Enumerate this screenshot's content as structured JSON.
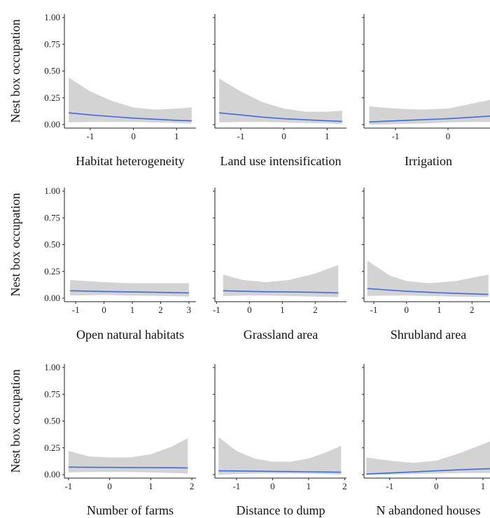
{
  "chart_data": [
    {
      "type": "line",
      "xlabel": "Habitat heterogeneity",
      "ylabel": "Nest box occupation",
      "xlim": [
        -1.6,
        1.45
      ],
      "xticks": [
        -1,
        0,
        1
      ],
      "ylim": [
        0,
        1
      ],
      "yticks": [
        "0.00",
        "0.25",
        "0.50",
        "0.75",
        "1.00"
      ],
      "x": [
        -1.5,
        -1,
        -0.5,
        0,
        0.5,
        1,
        1.35
      ],
      "y": [
        0.11,
        0.09,
        0.075,
        0.06,
        0.05,
        0.04,
        0.035
      ],
      "ci_lower": [
        0.02,
        0.025,
        0.025,
        0.025,
        0.02,
        0.015,
        0.01
      ],
      "ci_upper": [
        0.44,
        0.31,
        0.22,
        0.16,
        0.14,
        0.15,
        0.16
      ],
      "line_color": "#4169e1",
      "band_color": "#d3d3d3"
    },
    {
      "type": "line",
      "xlabel": "Land use intensification",
      "ylabel": "Nest box occupation",
      "xlim": [
        -1.6,
        1.45
      ],
      "xticks": [
        -1,
        0,
        1
      ],
      "ylim": [
        0,
        1
      ],
      "yticks": [
        "0.00",
        "0.25",
        "0.50",
        "0.75",
        "1.00"
      ],
      "x": [
        -1.5,
        -1,
        -0.5,
        0,
        0.5,
        1,
        1.35
      ],
      "y": [
        0.11,
        0.09,
        0.07,
        0.055,
        0.045,
        0.035,
        0.03
      ],
      "ci_lower": [
        0.02,
        0.025,
        0.025,
        0.02,
        0.015,
        0.01,
        0.005
      ],
      "ci_upper": [
        0.43,
        0.31,
        0.21,
        0.15,
        0.12,
        0.12,
        0.13
      ],
      "line_color": "#4169e1",
      "band_color": "#d3d3d3"
    },
    {
      "type": "line",
      "xlabel": "Irrigation",
      "ylabel": "Nest box occupation",
      "xlim": [
        -1.6,
        0.8
      ],
      "xticks": [
        -1,
        0
      ],
      "ylim": [
        0,
        1
      ],
      "yticks": [
        "0.00",
        "0.25",
        "0.50",
        "0.75",
        "1.00"
      ],
      "x": [
        -1.5,
        -1,
        -0.5,
        0,
        0.5,
        0.8
      ],
      "y": [
        0.025,
        0.035,
        0.045,
        0.055,
        0.07,
        0.08
      ],
      "ci_lower": [
        0.0,
        0.005,
        0.01,
        0.02,
        0.025,
        0.025
      ],
      "ci_upper": [
        0.17,
        0.15,
        0.14,
        0.15,
        0.2,
        0.23
      ],
      "line_color": "#4169e1",
      "band_color": "#d3d3d3"
    },
    {
      "type": "line",
      "xlabel": "Open natural habitats",
      "ylabel": "Nest box occupation",
      "xlim": [
        -1.4,
        3.25
      ],
      "xticks": [
        -1,
        0,
        1,
        2,
        3
      ],
      "ylim": [
        0,
        1
      ],
      "yticks": [
        "0.00",
        "0.25",
        "0.50",
        "0.75",
        "1.00"
      ],
      "x": [
        -1.2,
        0,
        1,
        2,
        3
      ],
      "y": [
        0.07,
        0.063,
        0.058,
        0.054,
        0.05
      ],
      "ci_lower": [
        0.025,
        0.03,
        0.025,
        0.02,
        0.015
      ],
      "ci_upper": [
        0.17,
        0.15,
        0.14,
        0.14,
        0.14
      ],
      "line_color": "#4169e1",
      "band_color": "#d3d3d3"
    },
    {
      "type": "line",
      "xlabel": "Grassland area",
      "ylabel": "Nest box occupation",
      "xlim": [
        -1.05,
        2.95
      ],
      "xticks": [
        -1,
        0,
        1,
        2
      ],
      "ylim": [
        0,
        1
      ],
      "yticks": [
        "0.00",
        "0.25",
        "0.50",
        "0.75",
        "1.00"
      ],
      "x": [
        -0.8,
        -0.2,
        0.5,
        1.2,
        2,
        2.7
      ],
      "y": [
        0.07,
        0.065,
        0.06,
        0.058,
        0.055,
        0.05
      ],
      "ci_lower": [
        0.02,
        0.025,
        0.025,
        0.02,
        0.015,
        0.01
      ],
      "ci_upper": [
        0.22,
        0.17,
        0.15,
        0.17,
        0.23,
        0.31
      ],
      "line_color": "#4169e1",
      "band_color": "#d3d3d3"
    },
    {
      "type": "line",
      "xlabel": "Shrubland area",
      "ylabel": "Nest box occupation",
      "xlim": [
        -1.3,
        2.55
      ],
      "xticks": [
        -1,
        0,
        1,
        2
      ],
      "ylim": [
        0,
        1
      ],
      "yticks": [
        "0.00",
        "0.25",
        "0.50",
        "0.75",
        "1.00"
      ],
      "x": [
        -1.2,
        -0.5,
        0,
        0.7,
        1.5,
        2.5
      ],
      "y": [
        0.09,
        0.075,
        0.065,
        0.055,
        0.045,
        0.035
      ],
      "ci_lower": [
        0.02,
        0.025,
        0.025,
        0.02,
        0.015,
        0.01
      ],
      "ci_upper": [
        0.35,
        0.21,
        0.16,
        0.14,
        0.16,
        0.22
      ],
      "line_color": "#4169e1",
      "band_color": "#d3d3d3"
    },
    {
      "type": "line",
      "xlabel": "Number of farms",
      "ylabel": "Nest box occupation",
      "xlim": [
        -1.1,
        2.1
      ],
      "xticks": [
        -1,
        0,
        1,
        2
      ],
      "ylim": [
        0,
        1
      ],
      "yticks": [
        "0.00",
        "0.25",
        "0.50",
        "0.75",
        "1.00"
      ],
      "x": [
        -1,
        -0.5,
        0,
        0.5,
        1,
        1.5,
        1.9
      ],
      "y": [
        0.07,
        0.068,
        0.067,
        0.066,
        0.065,
        0.064,
        0.063
      ],
      "ci_lower": [
        0.02,
        0.025,
        0.025,
        0.025,
        0.02,
        0.015,
        0.01
      ],
      "ci_upper": [
        0.22,
        0.17,
        0.16,
        0.16,
        0.19,
        0.26,
        0.34
      ],
      "line_color": "#4169e1",
      "band_color": "#d3d3d3"
    },
    {
      "type": "line",
      "xlabel": "Distance to dump",
      "ylabel": "Nest box occupation",
      "xlim": [
        -1.6,
        2.05
      ],
      "xticks": [
        -1,
        0,
        1,
        2
      ],
      "ylim": [
        0,
        1
      ],
      "yticks": [
        "0.00",
        "0.25",
        "0.50",
        "0.75",
        "1.00"
      ],
      "x": [
        -1.5,
        -1,
        -0.5,
        0,
        0.5,
        1,
        1.5,
        1.9
      ],
      "y": [
        0.035,
        0.034,
        0.032,
        0.03,
        0.028,
        0.026,
        0.024,
        0.022
      ],
      "ci_lower": [
        0.0,
        0.005,
        0.01,
        0.01,
        0.01,
        0.008,
        0.005,
        0.0
      ],
      "ci_upper": [
        0.35,
        0.22,
        0.15,
        0.12,
        0.12,
        0.15,
        0.21,
        0.27
      ],
      "line_color": "#4169e1",
      "band_color": "#d3d3d3"
    },
    {
      "type": "line",
      "xlabel": "N abandoned houses",
      "ylabel": "Nest box occupation",
      "xlim": [
        -1.55,
        1.15
      ],
      "xticks": [
        -1,
        0,
        1
      ],
      "ylim": [
        0,
        1
      ],
      "yticks": [
        "0.00",
        "0.25",
        "0.50",
        "0.75",
        "1.00"
      ],
      "x": [
        -1.5,
        -1,
        -0.5,
        0,
        0.5,
        1.15
      ],
      "y": [
        0.005,
        0.015,
        0.025,
        0.035,
        0.045,
        0.055
      ],
      "ci_lower": [
        0.0,
        0.0,
        0.005,
        0.01,
        0.015,
        0.015
      ],
      "ci_upper": [
        0.16,
        0.13,
        0.11,
        0.13,
        0.2,
        0.31
      ],
      "line_color": "#4169e1",
      "band_color": "#d3d3d3"
    }
  ]
}
